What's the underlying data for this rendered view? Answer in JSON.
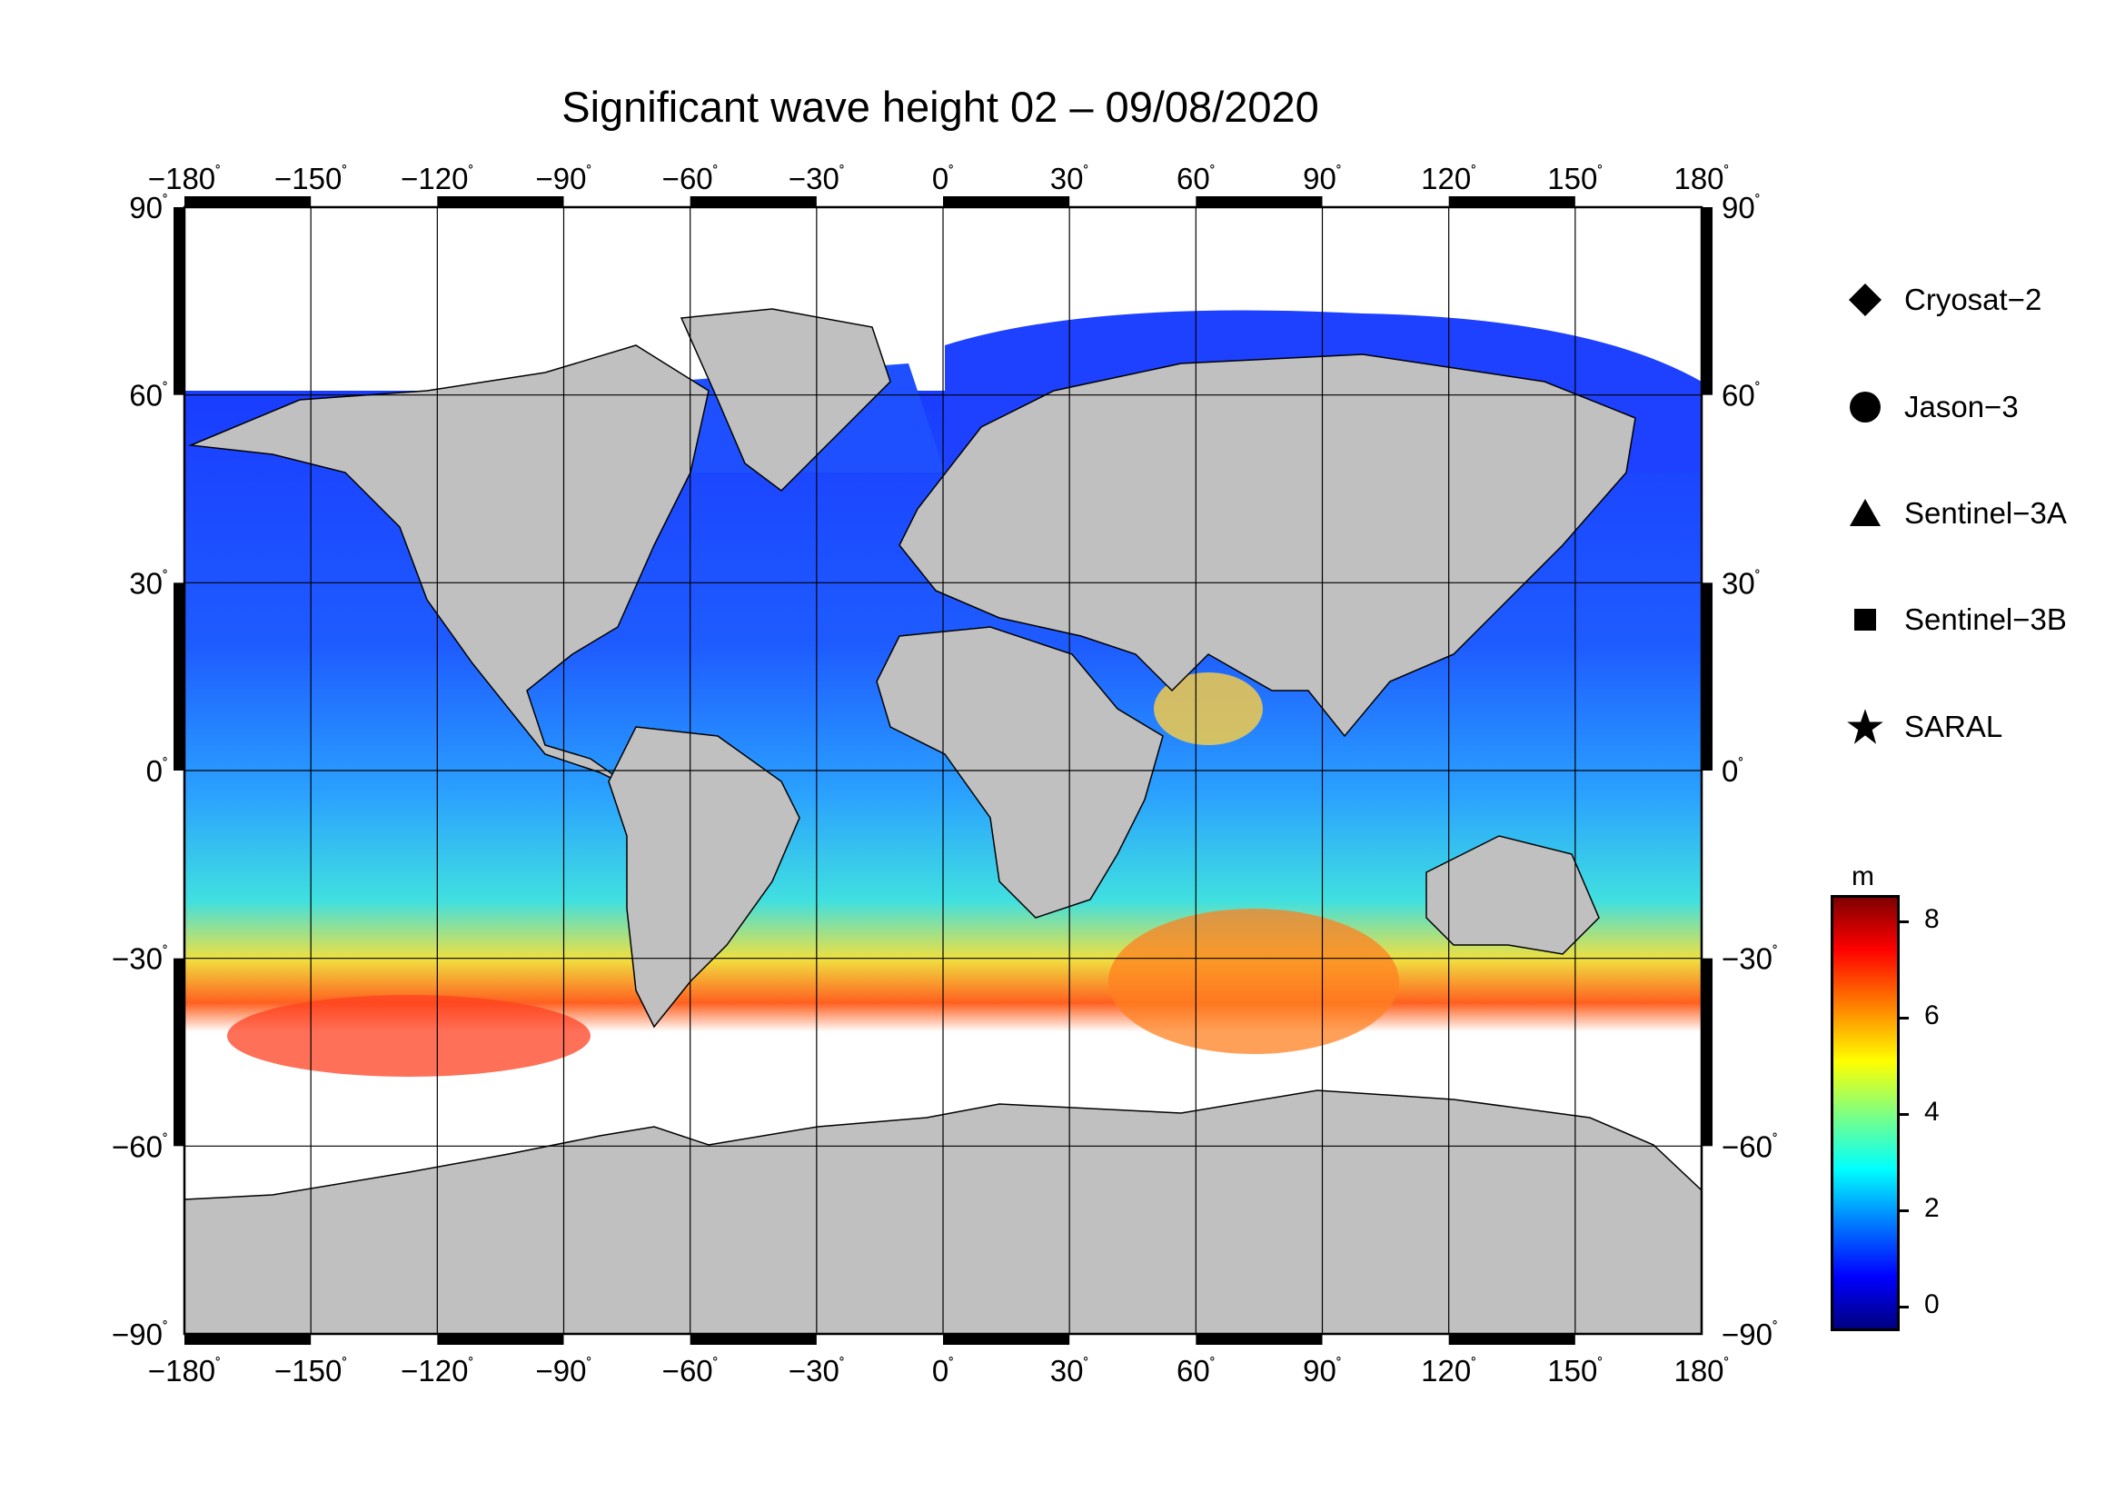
{
  "title": "Significant wave height 02 – 09/08/2020",
  "map": {
    "lon_ticks": [
      -180,
      -150,
      -120,
      -90,
      -60,
      -30,
      0,
      30,
      60,
      90,
      120,
      150,
      180
    ],
    "lat_ticks": [
      90,
      60,
      30,
      0,
      -30,
      -60,
      -90
    ],
    "lon_labels": [
      "−180",
      "−150",
      "−120",
      "−90",
      "−60",
      "−30",
      "0",
      "30",
      "60",
      "90",
      "120",
      "150",
      "180"
    ],
    "lat_labels": [
      "90",
      "60",
      "30",
      "0",
      "−30",
      "−60",
      "−90"
    ],
    "degree_symbol": "˚",
    "land_color": "#c0c0c0",
    "ice_color": "#ffffff",
    "grid_color": "#000000"
  },
  "legend": {
    "items": [
      {
        "label": "Cryosat−2",
        "icon": "diamond-icon"
      },
      {
        "label": "Jason−3",
        "icon": "circle-icon"
      },
      {
        "label": "Sentinel−3A",
        "icon": "triangle-icon"
      },
      {
        "label": "Sentinel−3B",
        "icon": "square-icon"
      },
      {
        "label": "SARAL",
        "icon": "star-icon"
      }
    ]
  },
  "colorbar": {
    "unit": "m",
    "ticks": [
      "0",
      "2",
      "4",
      "6",
      "8"
    ]
  }
}
